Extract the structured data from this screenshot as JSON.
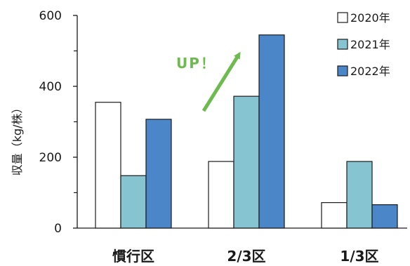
{
  "chart_data": {
    "type": "bar",
    "categories": [
      "慣行区",
      "2/3区",
      "1/3区"
    ],
    "series": [
      {
        "name": "2020年",
        "values": [
          355,
          188,
          72
        ],
        "color": "#ffffff"
      },
      {
        "name": "2021年",
        "values": [
          148,
          372,
          188
        ],
        "color": "#86c4d1"
      },
      {
        "name": "2022年",
        "values": [
          307,
          545,
          66
        ],
        "color": "#4a86c8"
      }
    ],
    "title": "",
    "ylabel": "収量（kg/株）",
    "xlabel": "",
    "ylim": [
      0,
      600
    ],
    "yticks": [
      0,
      200,
      400,
      600
    ],
    "minor_yticks": [
      100,
      300,
      500
    ],
    "grid": false,
    "legend_position": "top-right",
    "bar_edge_color": "#1a1a1a",
    "annotation": {
      "text": "UP！",
      "color": "#6dbb4f"
    }
  }
}
